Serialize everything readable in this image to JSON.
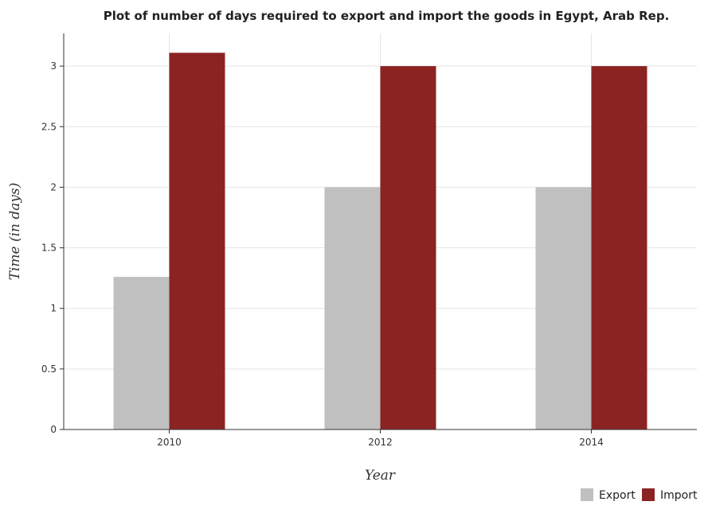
{
  "chart_data": {
    "type": "bar",
    "title": "Plot of number of days required to export and import the goods in Egypt, Arab Rep.",
    "xlabel": "Year",
    "ylabel": "Time (in days)",
    "categories": [
      "2010",
      "2012",
      "2014"
    ],
    "series": [
      {
        "name": "Export",
        "values": [
          1.26,
          2.0,
          2.0
        ],
        "color": "#c0c0c0"
      },
      {
        "name": "Import",
        "values": [
          3.11,
          3.0,
          3.0
        ],
        "color": "#8b2323"
      }
    ],
    "ylim": [
      0,
      3.27
    ],
    "yticks": [
      0,
      0.5,
      1,
      1.5,
      2,
      2.5,
      3
    ],
    "ytick_labels": [
      "0",
      "0.5",
      "1",
      "1.5",
      "2",
      "2.5",
      "3"
    ],
    "grid": true,
    "legend_position": "bottom-right"
  }
}
